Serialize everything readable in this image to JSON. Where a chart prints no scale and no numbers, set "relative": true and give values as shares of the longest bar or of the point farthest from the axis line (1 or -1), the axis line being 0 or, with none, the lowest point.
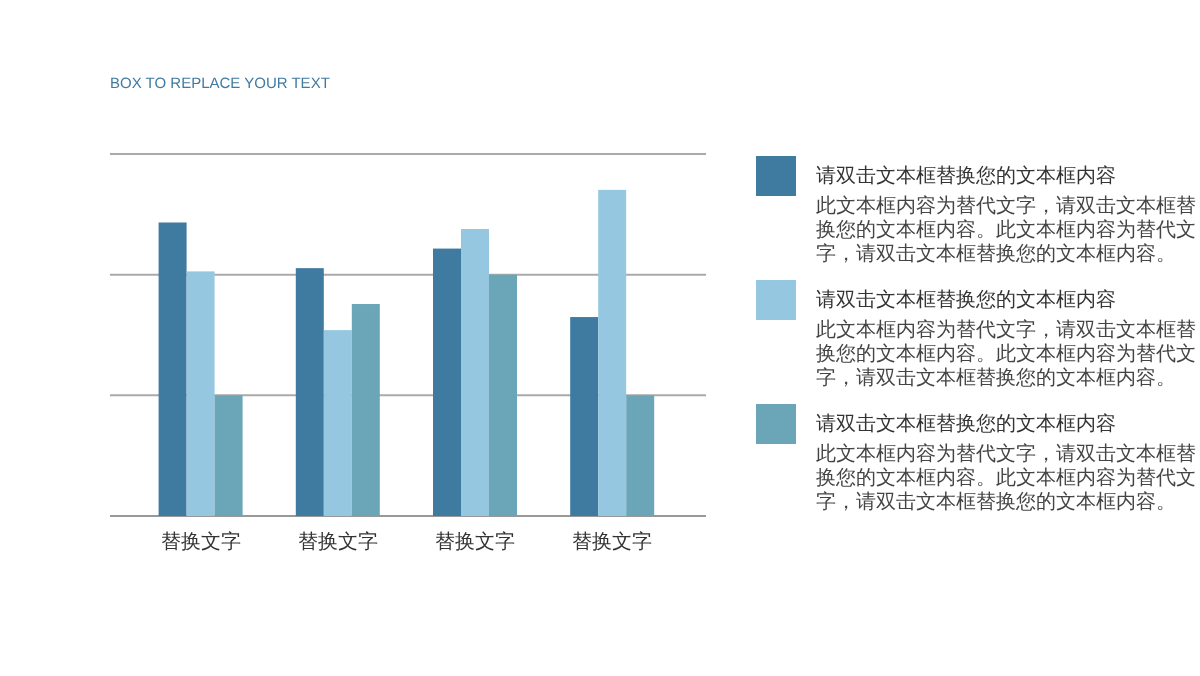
{
  "chart_data": {
    "type": "bar",
    "title": "BOX TO REPLACE YOUR TEXT",
    "relative": true,
    "legend": "right",
    "ref_lines": [
      {
        "axis": "y",
        "value": 0.37,
        "color": "#aaaaaa"
      },
      {
        "axis": "y",
        "value": 0.74,
        "color": "#aaaaaa"
      },
      {
        "axis": "y",
        "value": 1.11,
        "color": "#aaaaaa"
      }
    ],
    "categories": [
      "替换文字",
      "替换文字",
      "替换文字",
      "替换文字"
    ],
    "series": [
      {
        "name": "请双击文本框替换您的文本框内容",
        "color": "#3f7ba1",
        "values": [
          0.9,
          0.76,
          0.82,
          0.61
        ]
      },
      {
        "name": "请双击文本框替换您的文本框内容",
        "color": "#96c7e0",
        "values": [
          0.75,
          0.57,
          0.88,
          1
        ]
      },
      {
        "name": "请双击文本框替换您的文本框内容",
        "color": "#6aa6b8",
        "values": [
          0.37,
          0.65,
          0.74,
          0.37
        ]
      }
    ],
    "annotations": [
      "此文本框内容为替代文字，请双击文本框替换您的文本框内容。此文本框内容为替代文字，请双击文本框替换您的文本框内容。",
      "此文本框内容为替代文字，请双击文本框替换您的文本框内容。此文本框内容为替代文字，请双击文本框替换您的文本框内容。",
      "此文本框内容为替代文字，请双击文本框替换您的文本框内容。此文本框内容为替代文字，请双击文本框替换您的文本框内容。"
    ]
  }
}
